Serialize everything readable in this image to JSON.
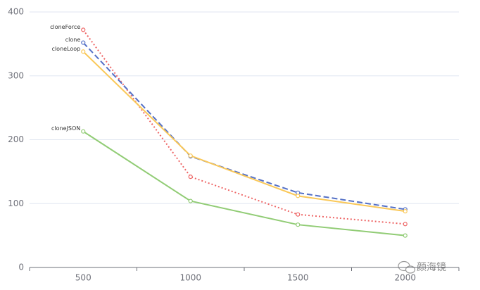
{
  "chart_data": {
    "type": "line",
    "categories": [
      "500",
      "1000",
      "1500",
      "2000"
    ],
    "series": [
      {
        "name": "cloneForce",
        "color": "#ee6666",
        "dash": "dotted",
        "values": [
          372,
          142,
          83,
          68
        ]
      },
      {
        "name": "clone",
        "color": "#5470c6",
        "dash": "dashed",
        "values": [
          352,
          174,
          117,
          91
        ]
      },
      {
        "name": "cloneLoop",
        "color": "#fac858",
        "dash": "solid",
        "values": [
          338,
          175,
          112,
          88
        ]
      },
      {
        "name": "cloneJSON",
        "color": "#91cc75",
        "dash": "solid",
        "values": [
          213,
          104,
          67,
          50
        ]
      }
    ],
    "ylim": [
      0,
      400
    ],
    "yticks": [
      0,
      100,
      200,
      300,
      400
    ],
    "grid": true,
    "watermark": "颜海镜"
  }
}
